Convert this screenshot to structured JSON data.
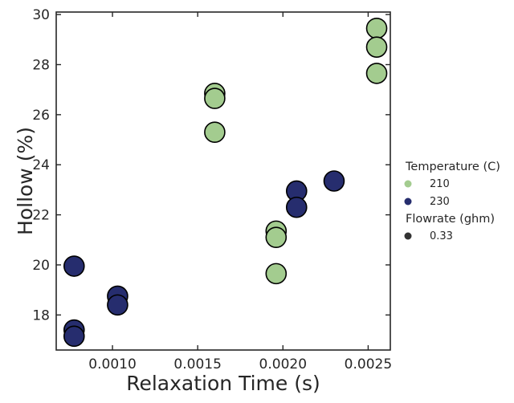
{
  "chart_data": {
    "type": "scatter",
    "xlabel": "Relaxation Time (s)",
    "ylabel": "Hollow (%)",
    "xlim": [
      0.00067,
      0.00263
    ],
    "ylim": [
      16.6,
      30.1
    ],
    "xticks": [
      0.001,
      0.0015,
      0.002,
      0.0025
    ],
    "xtick_labels": [
      "0.0010",
      "0.0015",
      "0.0020",
      "0.0025"
    ],
    "yticks": [
      18,
      20,
      22,
      24,
      26,
      28,
      30
    ],
    "ytick_labels": [
      "18",
      "20",
      "22",
      "24",
      "26",
      "28",
      "30"
    ],
    "grid": false,
    "legend_position": "outside-right",
    "legend": {
      "hue_title": "Temperature (C)",
      "hue_entries": [
        {
          "label": "210",
          "color": "#a3cc8f"
        },
        {
          "label": "230",
          "color": "#262d6e"
        }
      ],
      "size_title": "Flowrate (ghm)",
      "size_entries": [
        {
          "label": "0.33",
          "color": "#333333"
        }
      ]
    },
    "series": [
      {
        "name": "210",
        "color": "#a3cc8f",
        "points": [
          {
            "x": 0.0016,
            "y": 26.85
          },
          {
            "x": 0.0016,
            "y": 26.65
          },
          {
            "x": 0.0016,
            "y": 25.3
          },
          {
            "x": 0.00196,
            "y": 21.35
          },
          {
            "x": 0.00196,
            "y": 21.1
          },
          {
            "x": 0.00196,
            "y": 19.65
          },
          {
            "x": 0.00255,
            "y": 29.45
          },
          {
            "x": 0.00255,
            "y": 28.7
          },
          {
            "x": 0.00255,
            "y": 27.65
          }
        ]
      },
      {
        "name": "230",
        "color": "#262d6e",
        "points": [
          {
            "x": 0.000775,
            "y": 19.95
          },
          {
            "x": 0.000775,
            "y": 17.4
          },
          {
            "x": 0.000775,
            "y": 17.15
          },
          {
            "x": 0.00103,
            "y": 18.75
          },
          {
            "x": 0.00103,
            "y": 18.4
          },
          {
            "x": 0.00208,
            "y": 22.95
          },
          {
            "x": 0.00208,
            "y": 22.3
          },
          {
            "x": 0.0023,
            "y": 23.35
          }
        ]
      }
    ]
  }
}
